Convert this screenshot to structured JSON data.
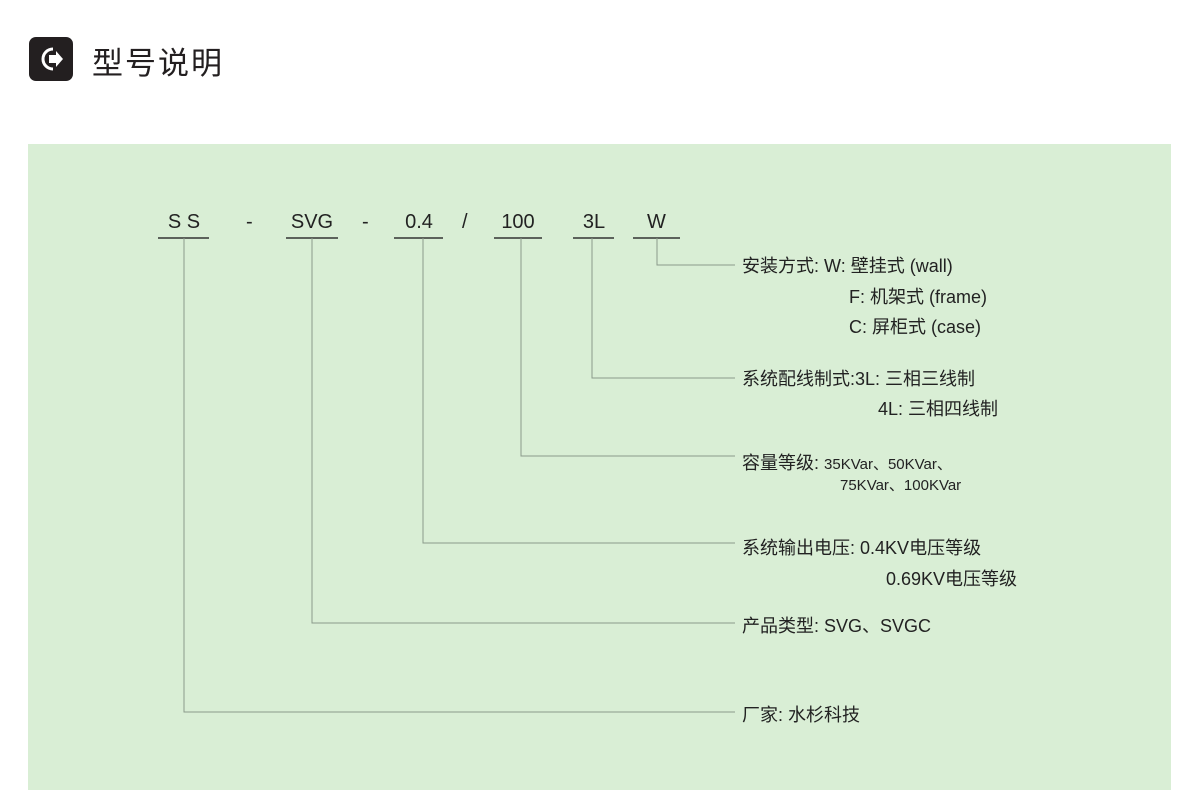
{
  "header": {
    "title": "型号说明",
    "icon": "arrow-right-circle-icon"
  },
  "code": {
    "segments": [
      {
        "id": "ss",
        "text": "S S"
      },
      {
        "id": "svg",
        "text": "SVG"
      },
      {
        "id": "voltage",
        "text": "0.4"
      },
      {
        "id": "capacity",
        "text": "100"
      },
      {
        "id": "wiring",
        "text": "3L"
      },
      {
        "id": "install",
        "text": "W"
      }
    ],
    "separators": [
      "-",
      "-",
      "/"
    ]
  },
  "descriptions": {
    "install": {
      "label": "安装方式:",
      "lines": [
        "W: 壁挂式 (wall)",
        "F: 机架式 (frame)",
        "C: 屏柜式 (case)"
      ]
    },
    "wiring": {
      "label": "系统配线制式:",
      "lines": [
        "3L: 三相三线制",
        "4L: 三相四线制"
      ]
    },
    "capacity": {
      "label": "容量等级:",
      "lines": [
        "35KVar、50KVar、",
        "75KVar、100KVar"
      ]
    },
    "voltage": {
      "label": "系统输出电压:",
      "lines": [
        "0.4KV电压等级",
        "0.69KV电压等级"
      ]
    },
    "svg": {
      "label": "产品类型:",
      "lines": [
        "SVG、SVGC"
      ]
    },
    "ss": {
      "label": "厂家:",
      "lines": [
        "水杉科技"
      ]
    }
  },
  "colors": {
    "panel": "#d9eed5",
    "line": "#8a9a8a",
    "underline": "#333333",
    "icon": "#231f20"
  }
}
